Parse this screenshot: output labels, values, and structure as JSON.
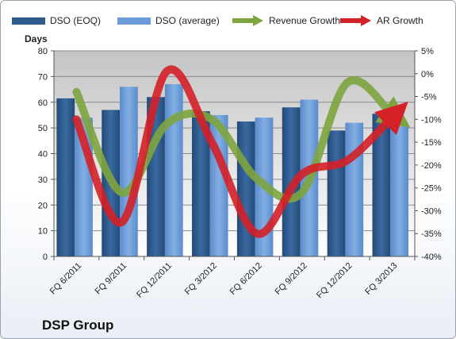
{
  "chart_data": {
    "type": "bar",
    "title": "DSP Group",
    "ylabel": "Days",
    "categories": [
      "FQ 6/2011",
      "FQ 9/2011",
      "FQ 12/2011",
      "FQ 3/2012",
      "FQ 6/2012",
      "FQ 9/2012",
      "FQ 12/2012",
      "FQ 3/2013"
    ],
    "ylim": [
      0,
      80
    ],
    "y_ticks": [
      "0",
      "10",
      "20",
      "30",
      "40",
      "50",
      "60",
      "70",
      "80"
    ],
    "y2lim": [
      -40,
      5
    ],
    "y2_ticks": [
      "-40%",
      "-35%",
      "-30%",
      "-25%",
      "-20%",
      "-15%",
      "-10%",
      "-5%",
      "0%",
      "5%"
    ],
    "series": [
      {
        "name": "DSO (EOQ)",
        "type": "bar",
        "axis": "left",
        "color": "#2e5a8c",
        "values": [
          61.5,
          57,
          62,
          56.5,
          52.5,
          58,
          49,
          55.5
        ]
      },
      {
        "name": "DSO (average)",
        "type": "bar",
        "axis": "left",
        "color": "#6b9bd8",
        "values": [
          54,
          66,
          67,
          55,
          54,
          61,
          52,
          51
        ]
      },
      {
        "name": "Revenue Growth",
        "type": "line",
        "axis": "right",
        "color": "#7ea43e",
        "values": [
          -4,
          -26,
          -11,
          -10,
          -23,
          -26,
          -2,
          -9
        ]
      },
      {
        "name": "AR Growth",
        "type": "line",
        "axis": "right",
        "color": "#d42027",
        "values": [
          -10,
          -32.5,
          0.5,
          -15,
          -35,
          -22,
          -19,
          -9.5
        ]
      }
    ],
    "grid": true,
    "legend": "top"
  }
}
